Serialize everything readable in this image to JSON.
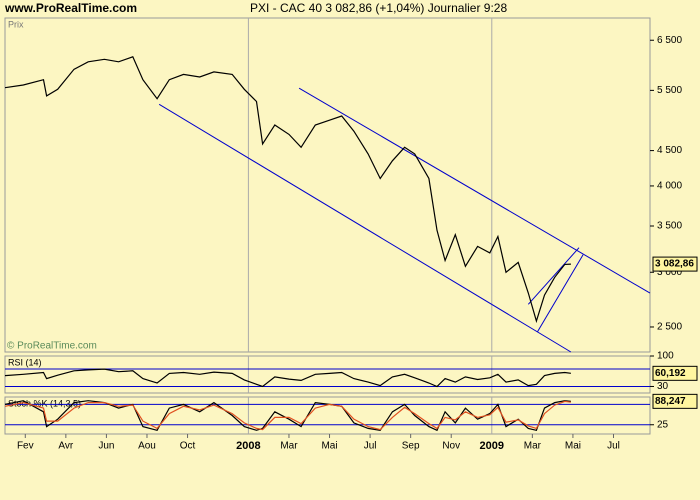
{
  "chart_data": [
    {
      "type": "line",
      "title": "PXI - CAC 40   3 082,86 (+1,04%)   Journalier  9:28",
      "source": "www.ProRealTime.com",
      "panel_label": "Prix",
      "watermark": "© ProRealTime.com",
      "log_scale": true,
      "x": [
        0,
        0.9,
        1.9,
        2.05,
        2.6,
        3.4,
        4.1,
        4.9,
        5.6,
        6.3,
        6.8,
        7.5,
        8.1,
        8.8,
        9.6,
        10.3,
        11.2,
        11.8,
        12.4,
        12.7,
        13.3,
        14.0,
        14.6,
        15.3,
        16.0,
        16.6,
        17.2,
        17.9,
        18.5,
        19.1,
        19.7,
        20.2,
        20.9,
        21.3,
        21.7,
        22.2,
        22.7,
        23.3,
        23.9,
        24.3,
        24.7,
        25.3,
        25.8,
        26.2,
        26.6,
        27.1,
        27.6,
        27.9
      ],
      "series": [
        {
          "name": "CAC 40",
          "color": "#000000",
          "values": [
            5550,
            5600,
            5700,
            5400,
            5520,
            5900,
            6050,
            6100,
            6050,
            6150,
            5700,
            5350,
            5700,
            5800,
            5750,
            5850,
            5800,
            5520,
            5300,
            4600,
            4900,
            4750,
            4550,
            4900,
            4980,
            5050,
            4800,
            4450,
            4100,
            4350,
            4550,
            4450,
            4100,
            3450,
            3120,
            3400,
            3060,
            3270,
            3200,
            3380,
            3000,
            3100,
            2800,
            2550,
            2780,
            2950,
            3080,
            3082.86
          ]
        }
      ],
      "last_label": "3 082,86",
      "trendlines": [
        {
          "x": [
            7.6,
            27.9
          ],
          "y": [
            5250,
            2300
          ],
          "color": "#0000cc"
        },
        {
          "x": [
            14.5,
            31.8
          ],
          "y": [
            5540,
            2799
          ],
          "color": "#0000cc"
        },
        {
          "x": [
            25.8,
            28.3
          ],
          "y": [
            2696,
            3256
          ],
          "color": "#0000cc"
        },
        {
          "x": [
            26.25,
            28.5
          ],
          "y": [
            2460,
            3180
          ],
          "color": "#0000cc"
        }
      ],
      "xlim": [
        0,
        31.8
      ],
      "xticks": [
        {
          "value": 1,
          "label": "Fev"
        },
        {
          "value": 3,
          "label": "Avr"
        },
        {
          "value": 5,
          "label": "Jun"
        },
        {
          "value": 7,
          "label": "Aou"
        },
        {
          "value": 9,
          "label": "Oct"
        },
        {
          "value": 12,
          "label": "2008"
        },
        {
          "value": 14,
          "label": "Mar"
        },
        {
          "value": 16,
          "label": "Mai"
        },
        {
          "value": 18,
          "label": "Jul"
        },
        {
          "value": 20,
          "label": "Sep"
        },
        {
          "value": 22,
          "label": "Nov"
        },
        {
          "value": 24,
          "label": "2009"
        },
        {
          "value": 26,
          "label": "Mar"
        },
        {
          "value": 28,
          "label": "Mai"
        },
        {
          "value": 30,
          "label": "Jul"
        }
      ],
      "ylim": [
        2300,
        7000
      ],
      "yticks": [
        {
          "value": 6500,
          "label": "6 500"
        },
        {
          "value": 5500,
          "label": "5 500"
        },
        {
          "value": 4500,
          "label": "4 500"
        },
        {
          "value": 4000,
          "label": "4 000"
        },
        {
          "value": 3500,
          "label": "3 500"
        },
        {
          "value": 3000,
          "label": "3 000"
        },
        {
          "value": 2500,
          "label": "2 500"
        }
      ]
    },
    {
      "type": "line",
      "panel_label": "RSI (14)",
      "series": [
        {
          "name": "RSI",
          "color": "#000000",
          "values": [
            55,
            58,
            62,
            48,
            56,
            66,
            68,
            70,
            64,
            66,
            48,
            38,
            60,
            62,
            58,
            63,
            60,
            45,
            35,
            30,
            52,
            47,
            44,
            58,
            60,
            62,
            48,
            40,
            32,
            52,
            58,
            50,
            38,
            30,
            48,
            40,
            52,
            46,
            50,
            58,
            40,
            45,
            32,
            35,
            55,
            60,
            62,
            60.192
          ]
        }
      ],
      "last_label": "60,192",
      "ylim": [
        15,
        100
      ],
      "yticks": [
        100,
        30
      ],
      "levels": [
        30,
        70
      ],
      "level_color": "#0000cc"
    },
    {
      "type": "line",
      "panel_label": "Stoch %K (14,3,5)",
      "series": [
        {
          "name": "%K",
          "color": "#000000",
          "values": [
            80,
            90,
            60,
            20,
            40,
            85,
            90,
            85,
            70,
            80,
            20,
            10,
            70,
            80,
            60,
            85,
            50,
            20,
            10,
            15,
            60,
            40,
            20,
            85,
            80,
            75,
            30,
            15,
            10,
            60,
            80,
            50,
            20,
            10,
            60,
            30,
            70,
            40,
            55,
            80,
            20,
            40,
            15,
            10,
            70,
            85,
            90,
            88.247
          ]
        },
        {
          "name": "%D",
          "color": "#e05020",
          "values": [
            75,
            85,
            70,
            35,
            35,
            70,
            85,
            85,
            75,
            78,
            35,
            15,
            55,
            75,
            65,
            78,
            55,
            30,
            15,
            12,
            45,
            45,
            28,
            70,
            80,
            75,
            40,
            20,
            12,
            45,
            72,
            55,
            28,
            15,
            45,
            38,
            60,
            45,
            52,
            72,
            32,
            38,
            22,
            15,
            55,
            78,
            88,
            86
          ]
        }
      ],
      "last_label": "88,247",
      "ylim": [
        0,
        100
      ],
      "yticks": [
        25
      ],
      "levels": [
        25,
        80
      ],
      "level_color": "#0000cc"
    }
  ]
}
